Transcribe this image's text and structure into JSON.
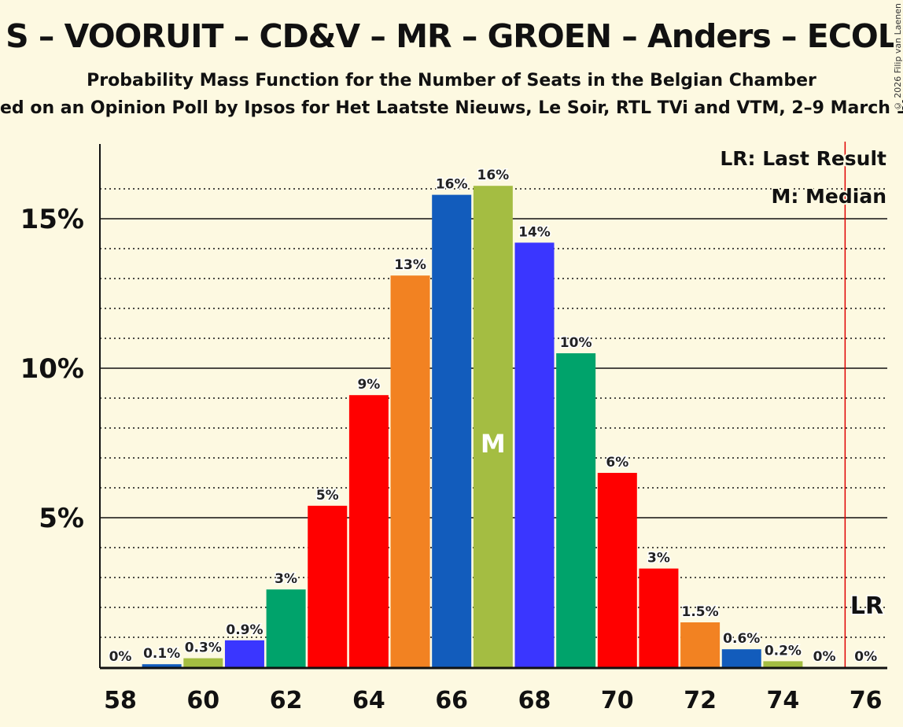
{
  "title": "S – VOORUIT – CD&V – MR – GROEN – Anders – ECOL",
  "subtitle": "Probability Mass Function for the Number of Seats in the Belgian Chamber",
  "source": "ed on an Opinion Poll by Ipsos for Het Laatste Nieuws, Le Soir, RTL TVi and VTM, 2–9 March 2",
  "copyright": "© 2026 Filip van Laenen",
  "chart_data": {
    "type": "bar",
    "x": [
      58,
      59,
      60,
      61,
      62,
      63,
      64,
      65,
      66,
      67,
      68,
      69,
      70,
      71,
      72,
      73,
      74,
      75,
      76
    ],
    "values": [
      0,
      0.1,
      0.3,
      0.9,
      2.6,
      5.4,
      9.1,
      13.1,
      15.8,
      16.1,
      14.2,
      10.5,
      6.5,
      3.3,
      1.5,
      0.6,
      0.2,
      0,
      0
    ],
    "labels": [
      "0%",
      "0.1%",
      "0.3%",
      "0.9%",
      "3%",
      "5%",
      "9%",
      "13%",
      "16%",
      "16%",
      "14%",
      "10%",
      "6%",
      "3%",
      "1.5%",
      "0.6%",
      "0.2%",
      "0%",
      "0%"
    ],
    "xticks": [
      "58",
      "60",
      "62",
      "64",
      "66",
      "68",
      "70",
      "72",
      "74",
      "76"
    ],
    "yticks": [
      "5%",
      "10%",
      "15%"
    ],
    "ylim": [
      0,
      17.5
    ],
    "median_seat": 67,
    "median_marker": "M",
    "last_result_seat": 75.5,
    "last_result_marker": "LR",
    "legend": [
      "LR: Last Result",
      "M: Median"
    ],
    "colors": [
      "#125cbc",
      "#a4bd42",
      "#3a36ff",
      "#00a36b",
      "#ff0000",
      "#ff0000",
      "#f28222"
    ],
    "lr_color": "#e00000"
  }
}
